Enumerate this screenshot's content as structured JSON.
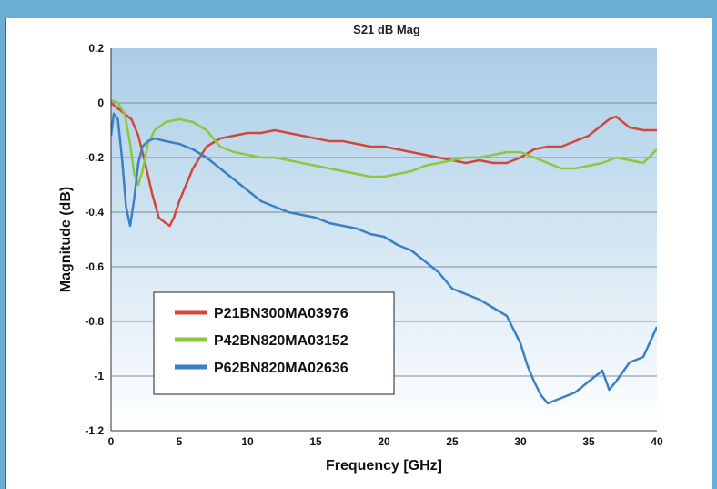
{
  "chart_data": {
    "type": "line",
    "title": "S21 dB Mag",
    "xlabel": "Frequency [GHz]",
    "ylabel": "Magnitude (dB)",
    "xlim": [
      0,
      40
    ],
    "ylim": [
      -1.2,
      0.2
    ],
    "xticks": [
      0,
      5,
      10,
      15,
      20,
      25,
      30,
      35,
      40
    ],
    "yticks": [
      0.2,
      0,
      -0.2,
      -0.4,
      -0.6,
      -0.8,
      -1,
      -1.2
    ],
    "xtick_labels": [
      "0",
      "5",
      "10",
      "15",
      "20",
      "25",
      "30",
      "35",
      "40"
    ],
    "ytick_labels": [
      "0.2",
      "0",
      "-0.2",
      "-0.4",
      "-0.6",
      "-0.8",
      "-1",
      "-1.2"
    ],
    "grid": true,
    "legend_position": "bottom-left",
    "series": [
      {
        "name": "P21BN300MA03976",
        "color": "#d2463c",
        "x": [
          0,
          0.5,
          1,
          1.5,
          2,
          2.5,
          3,
          3.5,
          4,
          4.3,
          4.6,
          5,
          5.5,
          6,
          7,
          8,
          9,
          10,
          11,
          12,
          13,
          14,
          15,
          16,
          17,
          18,
          19,
          20,
          21,
          22,
          23,
          24,
          25,
          26,
          27,
          28,
          29,
          30,
          31,
          32,
          33,
          34,
          35,
          36,
          36.5,
          37,
          37.5,
          38,
          39,
          40
        ],
        "y": [
          0,
          -0.02,
          -0.04,
          -0.06,
          -0.12,
          -0.22,
          -0.33,
          -0.42,
          -0.44,
          -0.45,
          -0.42,
          -0.36,
          -0.3,
          -0.24,
          -0.16,
          -0.13,
          -0.12,
          -0.11,
          -0.11,
          -0.1,
          -0.11,
          -0.12,
          -0.13,
          -0.14,
          -0.14,
          -0.15,
          -0.16,
          -0.16,
          -0.17,
          -0.18,
          -0.19,
          -0.2,
          -0.21,
          -0.22,
          -0.21,
          -0.22,
          -0.22,
          -0.2,
          -0.17,
          -0.16,
          -0.16,
          -0.14,
          -0.12,
          -0.08,
          -0.06,
          -0.05,
          -0.07,
          -0.09,
          -0.1,
          -0.1
        ]
      },
      {
        "name": "P42BN820MA03152",
        "color": "#8dc63f",
        "x": [
          0,
          0.5,
          1,
          1.4,
          1.7,
          2,
          2.3,
          2.7,
          3.2,
          4,
          5,
          6,
          7,
          8,
          9,
          10,
          11,
          12,
          13,
          14,
          15,
          16,
          17,
          18,
          19,
          20,
          21,
          22,
          23,
          24,
          25,
          26,
          27,
          28,
          29,
          30,
          31,
          32,
          33,
          34,
          35,
          36,
          37,
          38,
          39,
          40
        ],
        "y": [
          0.01,
          0,
          -0.04,
          -0.15,
          -0.26,
          -0.3,
          -0.25,
          -0.15,
          -0.1,
          -0.07,
          -0.06,
          -0.07,
          -0.1,
          -0.16,
          -0.18,
          -0.19,
          -0.2,
          -0.2,
          -0.21,
          -0.22,
          -0.23,
          -0.24,
          -0.25,
          -0.26,
          -0.27,
          -0.27,
          -0.26,
          -0.25,
          -0.23,
          -0.22,
          -0.21,
          -0.2,
          -0.2,
          -0.19,
          -0.18,
          -0.18,
          -0.2,
          -0.22,
          -0.24,
          -0.24,
          -0.23,
          -0.22,
          -0.2,
          -0.21,
          -0.22,
          -0.17
        ]
      },
      {
        "name": "P62BN820MA02636",
        "color": "#3b7fc4",
        "x": [
          0,
          0.2,
          0.5,
          0.8,
          1.1,
          1.4,
          1.7,
          2,
          2.3,
          2.7,
          3.2,
          4,
          5,
          6,
          7,
          8,
          9,
          10,
          11,
          12,
          13,
          14,
          15,
          16,
          17,
          18,
          19,
          20,
          21,
          22,
          23,
          24,
          25,
          26,
          27,
          28,
          29,
          29.5,
          30,
          30.5,
          31,
          31.5,
          32,
          33,
          34,
          35,
          36,
          36.5,
          37,
          38,
          39,
          40
        ],
        "y": [
          -0.12,
          -0.04,
          -0.06,
          -0.2,
          -0.38,
          -0.45,
          -0.35,
          -0.22,
          -0.16,
          -0.14,
          -0.13,
          -0.14,
          -0.15,
          -0.17,
          -0.2,
          -0.24,
          -0.28,
          -0.32,
          -0.36,
          -0.38,
          -0.4,
          -0.41,
          -0.42,
          -0.44,
          -0.45,
          -0.46,
          -0.48,
          -0.49,
          -0.52,
          -0.54,
          -0.58,
          -0.62,
          -0.68,
          -0.7,
          -0.72,
          -0.75,
          -0.78,
          -0.83,
          -0.88,
          -0.96,
          -1.02,
          -1.07,
          -1.1,
          -1.08,
          -1.06,
          -1.02,
          -0.98,
          -1.05,
          -1.02,
          -0.95,
          -0.93,
          -0.82
        ]
      }
    ]
  }
}
